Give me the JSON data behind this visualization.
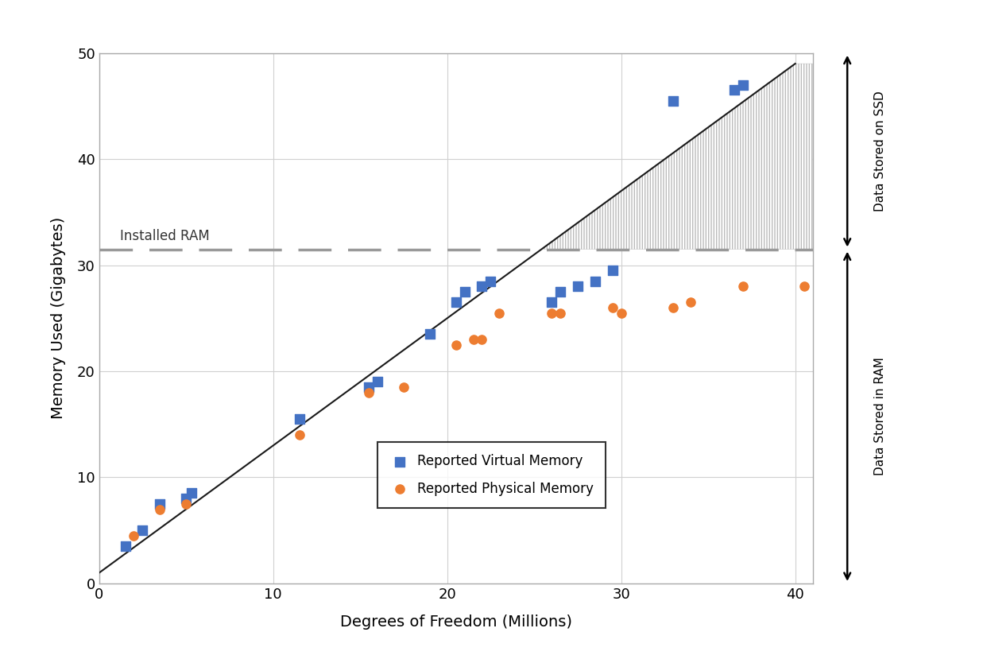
{
  "virtual_memory_x": [
    1.5,
    2.5,
    3.5,
    5.0,
    5.3,
    11.5,
    15.5,
    16.0,
    19.0,
    20.5,
    21.0,
    22.0,
    22.5,
    26.0,
    26.5,
    27.5,
    28.5,
    29.5,
    33.0,
    36.5,
    37.0
  ],
  "virtual_memory_y": [
    3.5,
    5.0,
    7.5,
    8.0,
    8.5,
    15.5,
    18.5,
    19.0,
    23.5,
    26.5,
    27.5,
    28.0,
    28.5,
    26.5,
    27.5,
    28.0,
    28.5,
    29.5,
    45.5,
    46.5,
    47.0
  ],
  "physical_memory_x": [
    2.0,
    3.5,
    5.0,
    11.5,
    15.5,
    17.5,
    20.5,
    21.5,
    22.0,
    23.0,
    26.0,
    26.5,
    29.5,
    30.0,
    33.0,
    34.0,
    37.0,
    40.5
  ],
  "physical_memory_y": [
    4.5,
    7.0,
    7.5,
    14.0,
    18.0,
    18.5,
    22.5,
    23.0,
    23.0,
    25.5,
    25.5,
    25.5,
    26.0,
    25.5,
    26.0,
    26.5,
    28.0,
    28.0
  ],
  "trend_line_x": [
    0,
    40
  ],
  "trend_line_y": [
    1,
    49
  ],
  "ram_line_y": 31.5,
  "xlim": [
    0,
    41
  ],
  "ylim": [
    0,
    50
  ],
  "xticks": [
    0,
    10,
    20,
    30,
    40
  ],
  "yticks": [
    0,
    10,
    20,
    30,
    40,
    50
  ],
  "xlabel": "Degrees of Freedom (Millions)",
  "ylabel": "Memory Used (Gigabytes)",
  "virtual_color": "#4472C4",
  "physical_color": "#ED7D31",
  "trend_color": "#1a1a1a",
  "ram_color": "#999999",
  "installed_ram_label": "Installed RAM",
  "legend_virtual": "Reported Virtual Memory",
  "legend_physical": "Reported Physical Memory",
  "annotation_ssd": "Data Stored on SSD",
  "annotation_ram": "Data Stored in RAM",
  "background_color": "#ffffff",
  "grid_color": "#d0d0d0",
  "spine_color": "#aaaaaa",
  "tick_fontsize": 13,
  "label_fontsize": 14,
  "legend_fontsize": 12
}
